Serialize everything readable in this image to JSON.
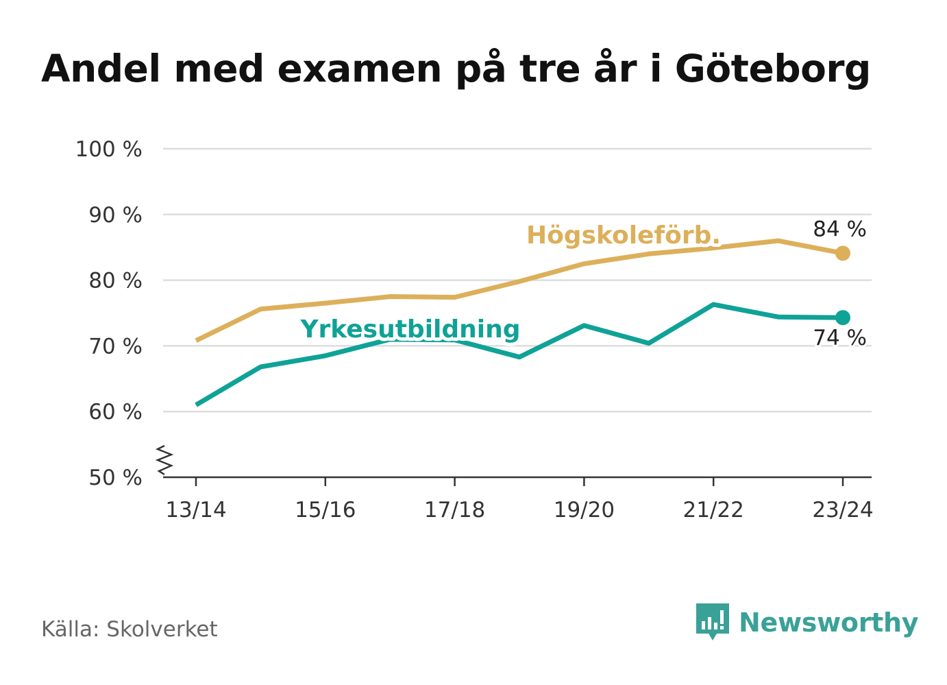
{
  "title": "Andel med examen på tre år i Göteborg",
  "source": "Källa: Skolverket",
  "brand": {
    "name": "Newsworthy",
    "icon": "bar-chart-speech-bubble-icon",
    "color": "#3aa198"
  },
  "colors": {
    "grid": "#dddddd",
    "axis": "#333333"
  },
  "chart_data": {
    "type": "line",
    "x": [
      "13/14",
      "14/15",
      "15/16",
      "16/17",
      "17/18",
      "18/19",
      "19/20",
      "20/21",
      "21/22",
      "22/23",
      "23/24"
    ],
    "x_tick_labels": [
      "13/14",
      "15/16",
      "17/18",
      "19/20",
      "21/22",
      "23/24"
    ],
    "y_tick_labels": [
      "50 %",
      "60 %",
      "70 %",
      "80 %",
      "90 %",
      "100 %"
    ],
    "ylim": [
      50,
      100
    ],
    "y_ticks": [
      50,
      60,
      70,
      80,
      90,
      100
    ],
    "y_axis_break": true,
    "grid": true,
    "series": [
      {
        "name": "Högskoleförb.",
        "color": "#dcb05a",
        "values": [
          70.8,
          75.6,
          76.5,
          77.5,
          77.4,
          79.8,
          82.5,
          84.0,
          84.9,
          86.0,
          84.1
        ],
        "end_label": "84 %"
      },
      {
        "name": "Yrkesutbildning",
        "color": "#0fa296",
        "values": [
          61.0,
          66.8,
          68.5,
          71.0,
          70.9,
          68.3,
          73.1,
          70.4,
          76.3,
          74.4,
          74.3
        ],
        "end_label": "74 %"
      }
    ]
  }
}
